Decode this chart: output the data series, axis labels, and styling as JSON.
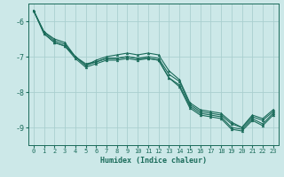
{
  "xlabel": "Humidex (Indice chaleur)",
  "ylabel": "",
  "bg_color": "#cce8e8",
  "grid_color": "#aacfcf",
  "line_color": "#1a6b5a",
  "xlim": [
    -0.5,
    23.5
  ],
  "ylim": [
    -9.5,
    -5.5
  ],
  "yticks": [
    -9,
    -8,
    -7,
    -6
  ],
  "xticks": [
    0,
    1,
    2,
    3,
    4,
    5,
    6,
    7,
    8,
    9,
    10,
    11,
    12,
    13,
    14,
    15,
    16,
    17,
    18,
    19,
    20,
    21,
    22,
    23
  ],
  "series": [
    [
      -5.7,
      -6.3,
      -6.5,
      -6.6,
      -7.0,
      -7.2,
      -7.15,
      -7.05,
      -7.05,
      -7.0,
      -7.05,
      -7.0,
      -7.05,
      -7.5,
      -7.7,
      -8.35,
      -8.55,
      -8.6,
      -8.65,
      -8.9,
      -9.0,
      -8.7,
      -8.8,
      -8.55
    ],
    [
      -5.7,
      -6.3,
      -6.55,
      -6.65,
      -7.0,
      -7.25,
      -7.15,
      -7.05,
      -7.05,
      -7.0,
      -7.05,
      -7.05,
      -7.1,
      -7.6,
      -7.8,
      -8.4,
      -8.6,
      -8.65,
      -8.7,
      -9.0,
      -9.05,
      -8.75,
      -8.9,
      -8.6
    ],
    [
      -5.7,
      -6.35,
      -6.6,
      -6.7,
      -7.0,
      -7.25,
      -7.1,
      -7.0,
      -6.95,
      -6.9,
      -6.95,
      -6.9,
      -6.95,
      -7.4,
      -7.65,
      -8.3,
      -8.5,
      -8.55,
      -8.6,
      -8.85,
      -9.0,
      -8.65,
      -8.75,
      -8.5
    ],
    [
      -5.7,
      -6.35,
      -6.6,
      -6.7,
      -7.05,
      -7.3,
      -7.2,
      -7.1,
      -7.1,
      -7.05,
      -7.1,
      -7.05,
      -7.1,
      -7.6,
      -7.85,
      -8.45,
      -8.65,
      -8.7,
      -8.75,
      -9.05,
      -9.1,
      -8.8,
      -8.95,
      -8.65
    ]
  ],
  "label_fontsize": 5.0,
  "xlabel_fontsize": 6.0,
  "linewidth": 0.8,
  "markersize": 2.0
}
